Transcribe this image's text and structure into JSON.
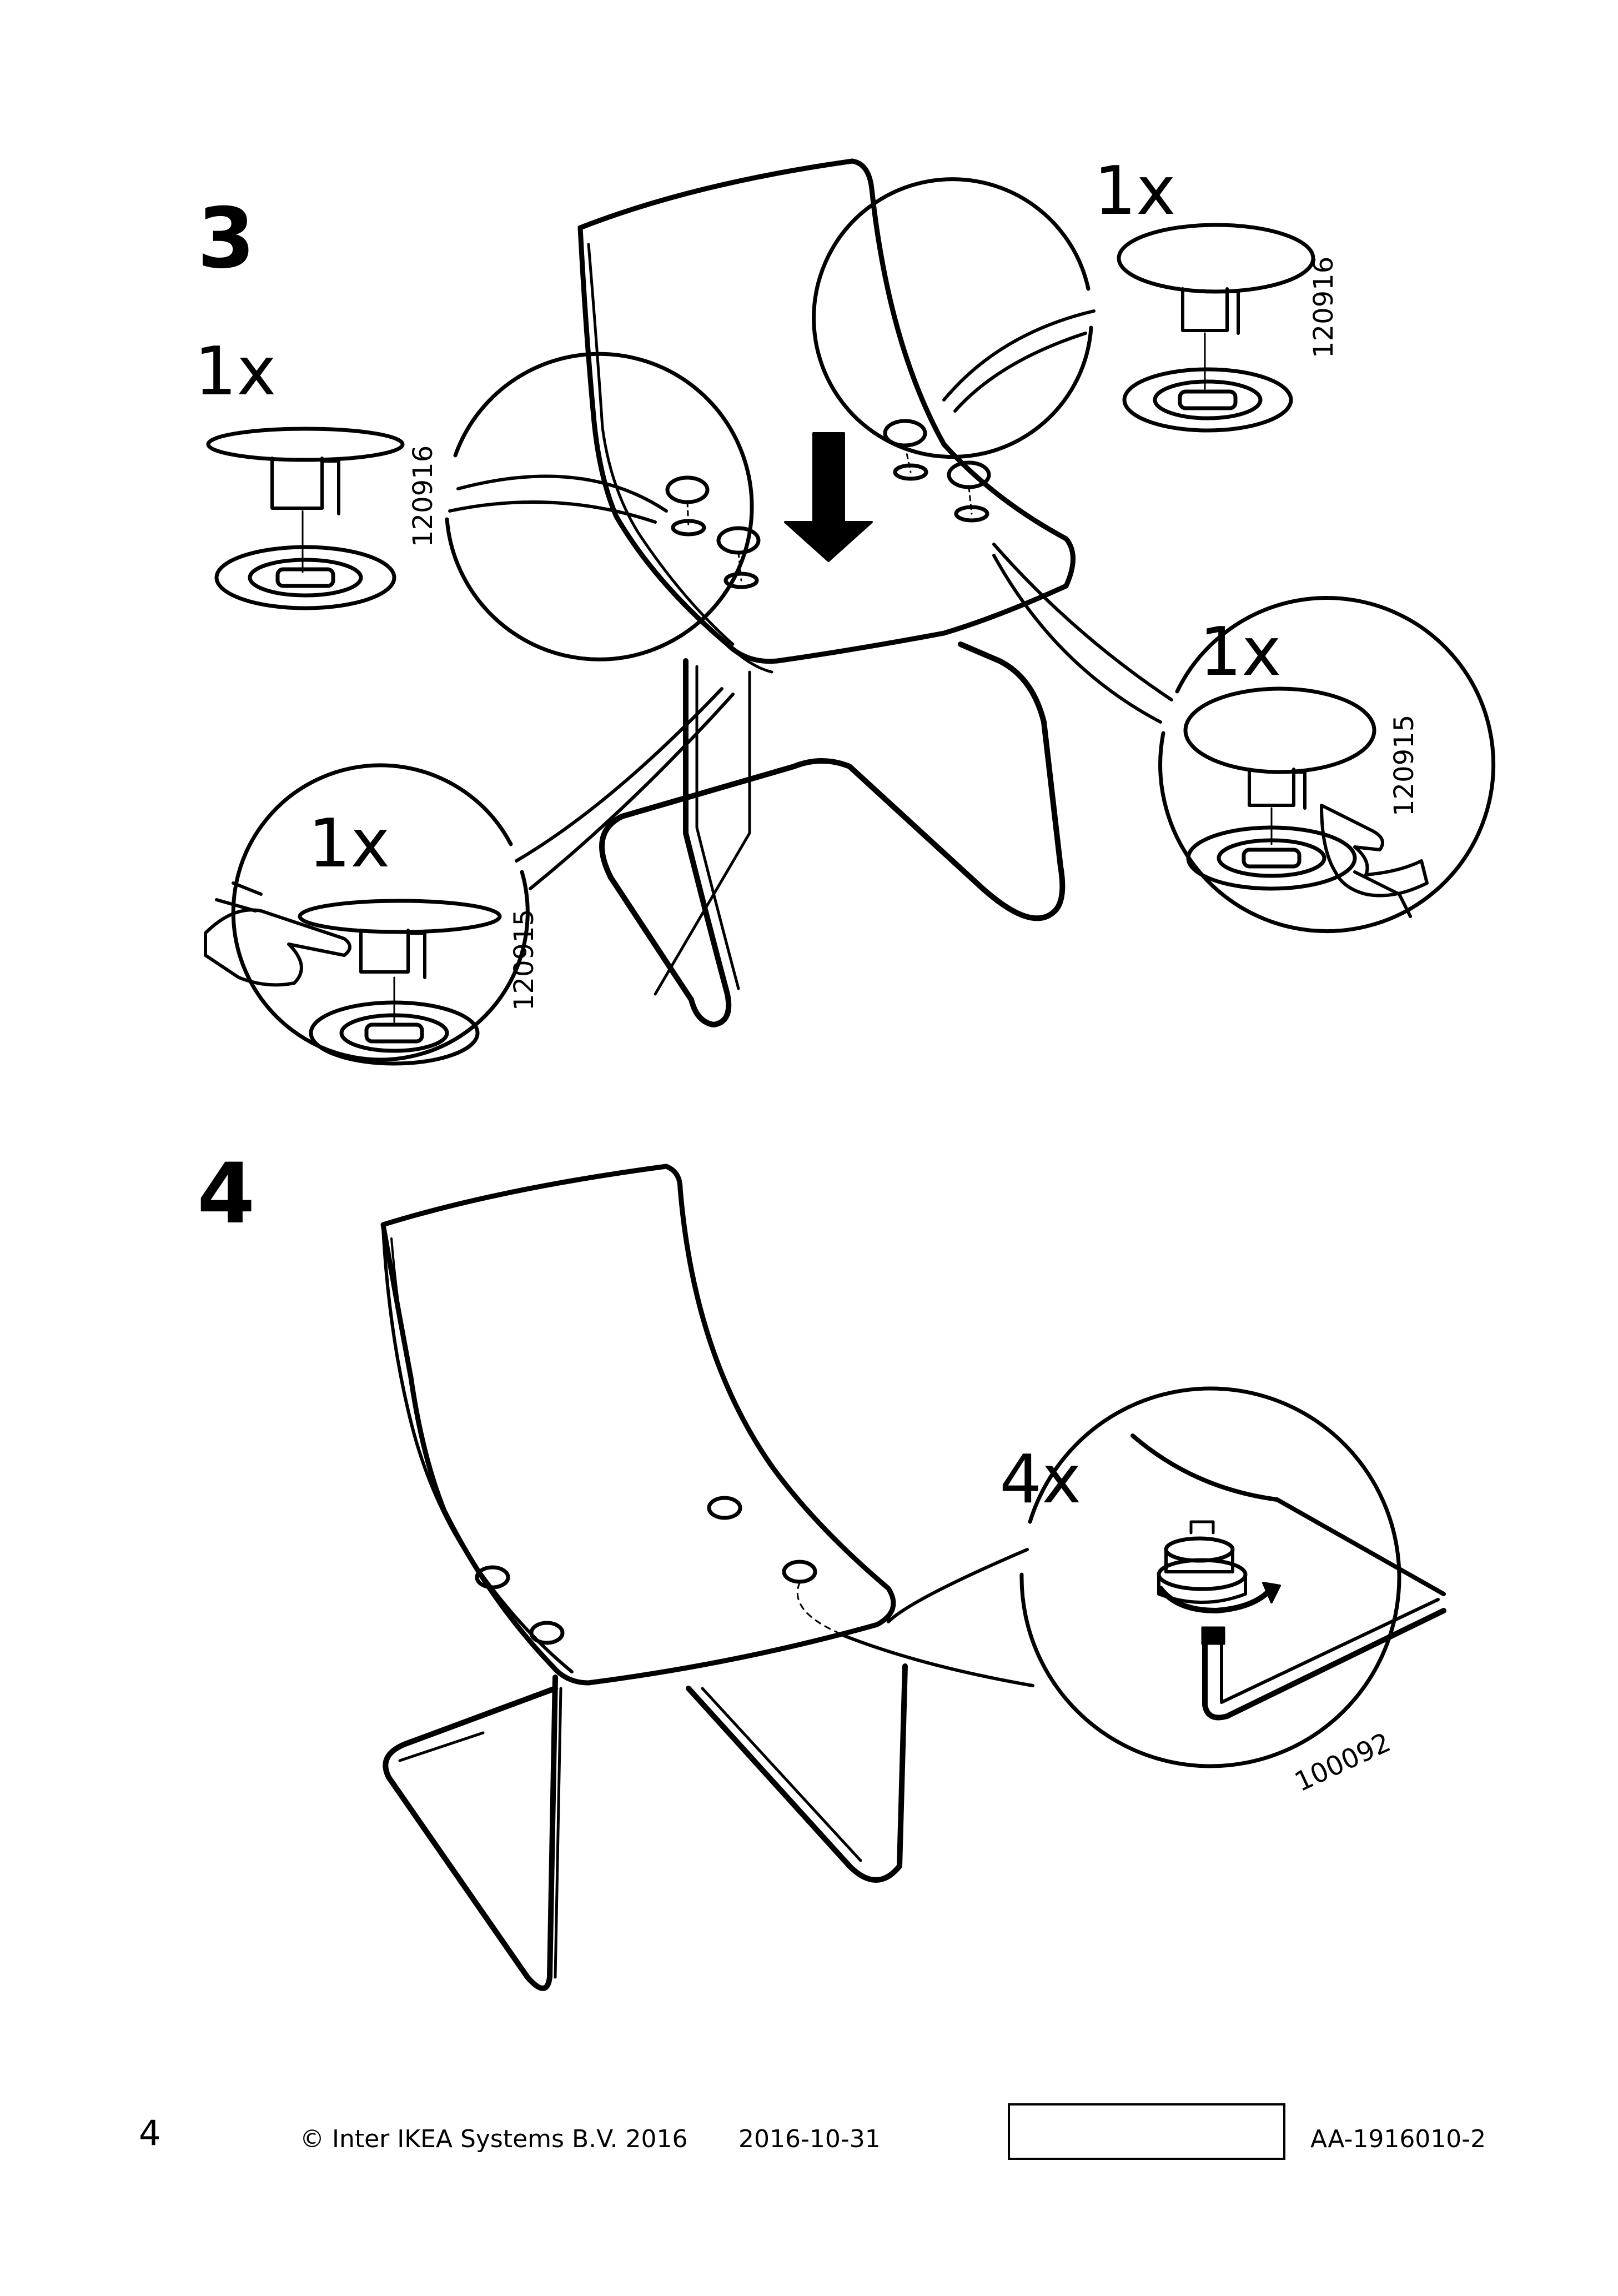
{
  "steps": [
    {
      "number": "3",
      "callouts": [
        {
          "quantity": "1x",
          "part_number": "120916"
        },
        {
          "quantity": "1x",
          "part_number": "120916"
        },
        {
          "quantity": "1x",
          "part_number": "120915"
        },
        {
          "quantity": "1x",
          "part_number": "120915"
        }
      ]
    },
    {
      "number": "4",
      "callouts": [
        {
          "quantity": "4x",
          "part_number": "100092"
        }
      ]
    }
  ],
  "footer": {
    "page_number": "4",
    "copyright": "© Inter IKEA Systems B.V. 2016",
    "date": "2016-10-31",
    "document_id": "AA-1916010-2"
  },
  "icons": [
    "chair-seat-illustration",
    "down-arrow-icon",
    "glide-cap-part",
    "pointing-hand-icon",
    "allen-key-part",
    "rotate-arrow-icon"
  ]
}
